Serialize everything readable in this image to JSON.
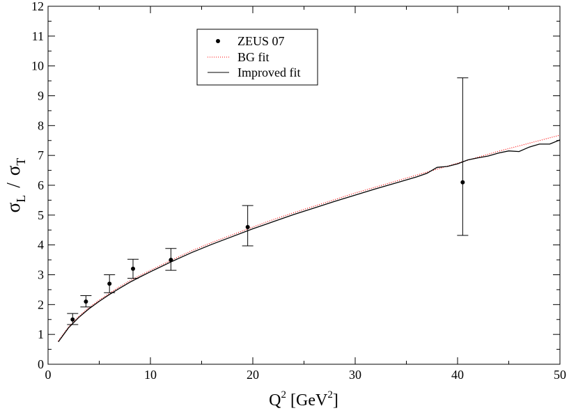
{
  "chart_data": {
    "type": "scatter",
    "xlabel": {
      "base": "Q",
      "sup": "2",
      "unit_open": " [GeV",
      "unit_sup": "2",
      "unit_close": "]"
    },
    "ylabel": {
      "sigma": "σ",
      "sub_num": "L",
      "slash": "/",
      "sub_den": "T"
    },
    "xlim": [
      0,
      50
    ],
    "ylim": [
      0,
      12
    ],
    "xticks": [
      0,
      10,
      20,
      30,
      40,
      50
    ],
    "yticks": [
      0,
      1,
      2,
      3,
      4,
      5,
      6,
      7,
      8,
      9,
      10,
      11,
      12
    ],
    "grid": false,
    "legend_position": "top-left",
    "series": [
      {
        "name": "ZEUS 07",
        "kind": "points",
        "color": "#000000",
        "points": [
          {
            "x": 2.4,
            "y": 1.5,
            "err_low": 1.33,
            "err_high": 1.7
          },
          {
            "x": 3.7,
            "y": 2.1,
            "err_low": 1.92,
            "err_high": 2.3
          },
          {
            "x": 6.0,
            "y": 2.7,
            "err_low": 2.4,
            "err_high": 3.0
          },
          {
            "x": 8.3,
            "y": 3.2,
            "err_low": 2.88,
            "err_high": 3.52
          },
          {
            "x": 12.0,
            "y": 3.5,
            "err_low": 3.15,
            "err_high": 3.88
          },
          {
            "x": 19.5,
            "y": 4.6,
            "err_low": 3.97,
            "err_high": 5.32
          },
          {
            "x": 40.5,
            "y": 6.1,
            "err_low": 4.32,
            "err_high": 9.6
          }
        ]
      },
      {
        "name": "BG fit",
        "kind": "line",
        "style": "dotted",
        "color": "#ff0000",
        "x": [
          1,
          2,
          3,
          4,
          5,
          6,
          7,
          8,
          9,
          10,
          12,
          14,
          16,
          18,
          20,
          22,
          24,
          26,
          28,
          30,
          32,
          34,
          36,
          38,
          40,
          42,
          44,
          46,
          48,
          50
        ],
        "y": [
          0.78,
          1.25,
          1.6,
          1.9,
          2.15,
          2.38,
          2.6,
          2.8,
          2.98,
          3.15,
          3.48,
          3.8,
          4.08,
          4.34,
          4.6,
          4.85,
          5.08,
          5.3,
          5.52,
          5.74,
          5.94,
          6.14,
          6.34,
          6.54,
          6.74,
          6.94,
          7.14,
          7.32,
          7.5,
          7.68
        ]
      },
      {
        "name": "Improved fit",
        "kind": "line",
        "style": "solid",
        "color": "#000000",
        "x": [
          1,
          2,
          3,
          4,
          5,
          6,
          7,
          8,
          9,
          10,
          12,
          14,
          16,
          18,
          20,
          22,
          24,
          26,
          28,
          30,
          32,
          34,
          36,
          37,
          38,
          39,
          40,
          41,
          42,
          43,
          44,
          45,
          46,
          47,
          48,
          49,
          50
        ],
        "y": [
          0.75,
          1.22,
          1.57,
          1.86,
          2.11,
          2.34,
          2.55,
          2.75,
          2.93,
          3.1,
          3.43,
          3.74,
          4.02,
          4.28,
          4.54,
          4.78,
          5.02,
          5.24,
          5.46,
          5.67,
          5.88,
          6.08,
          6.28,
          6.4,
          6.6,
          6.63,
          6.72,
          6.85,
          6.92,
          6.98,
          7.08,
          7.15,
          7.13,
          7.28,
          7.38,
          7.38,
          7.52
        ]
      }
    ]
  }
}
